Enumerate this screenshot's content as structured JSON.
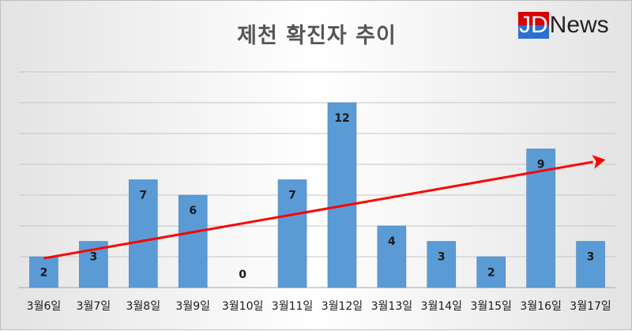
{
  "chart_data": {
    "type": "bar",
    "title": "제천 확진자 추이",
    "categories": [
      "3월6일",
      "3월7일",
      "3월8일",
      "3월9일",
      "3월10일",
      "3월11일",
      "3월12일",
      "3월13일",
      "3월14일",
      "3월15일",
      "3월16일",
      "3월17일"
    ],
    "values": [
      2,
      3,
      7,
      6,
      0,
      7,
      12,
      4,
      3,
      2,
      9,
      3
    ],
    "ylim": [
      0,
      14
    ],
    "grid": true,
    "legend": "none",
    "bar_color": "#5b9bd5",
    "trend_arrow": {
      "color": "#ff0000",
      "from": [
        0,
        1.9
      ],
      "to": [
        11.3,
        8.3
      ]
    }
  },
  "logo": {
    "part_a": "JD",
    "part_b": "News"
  }
}
